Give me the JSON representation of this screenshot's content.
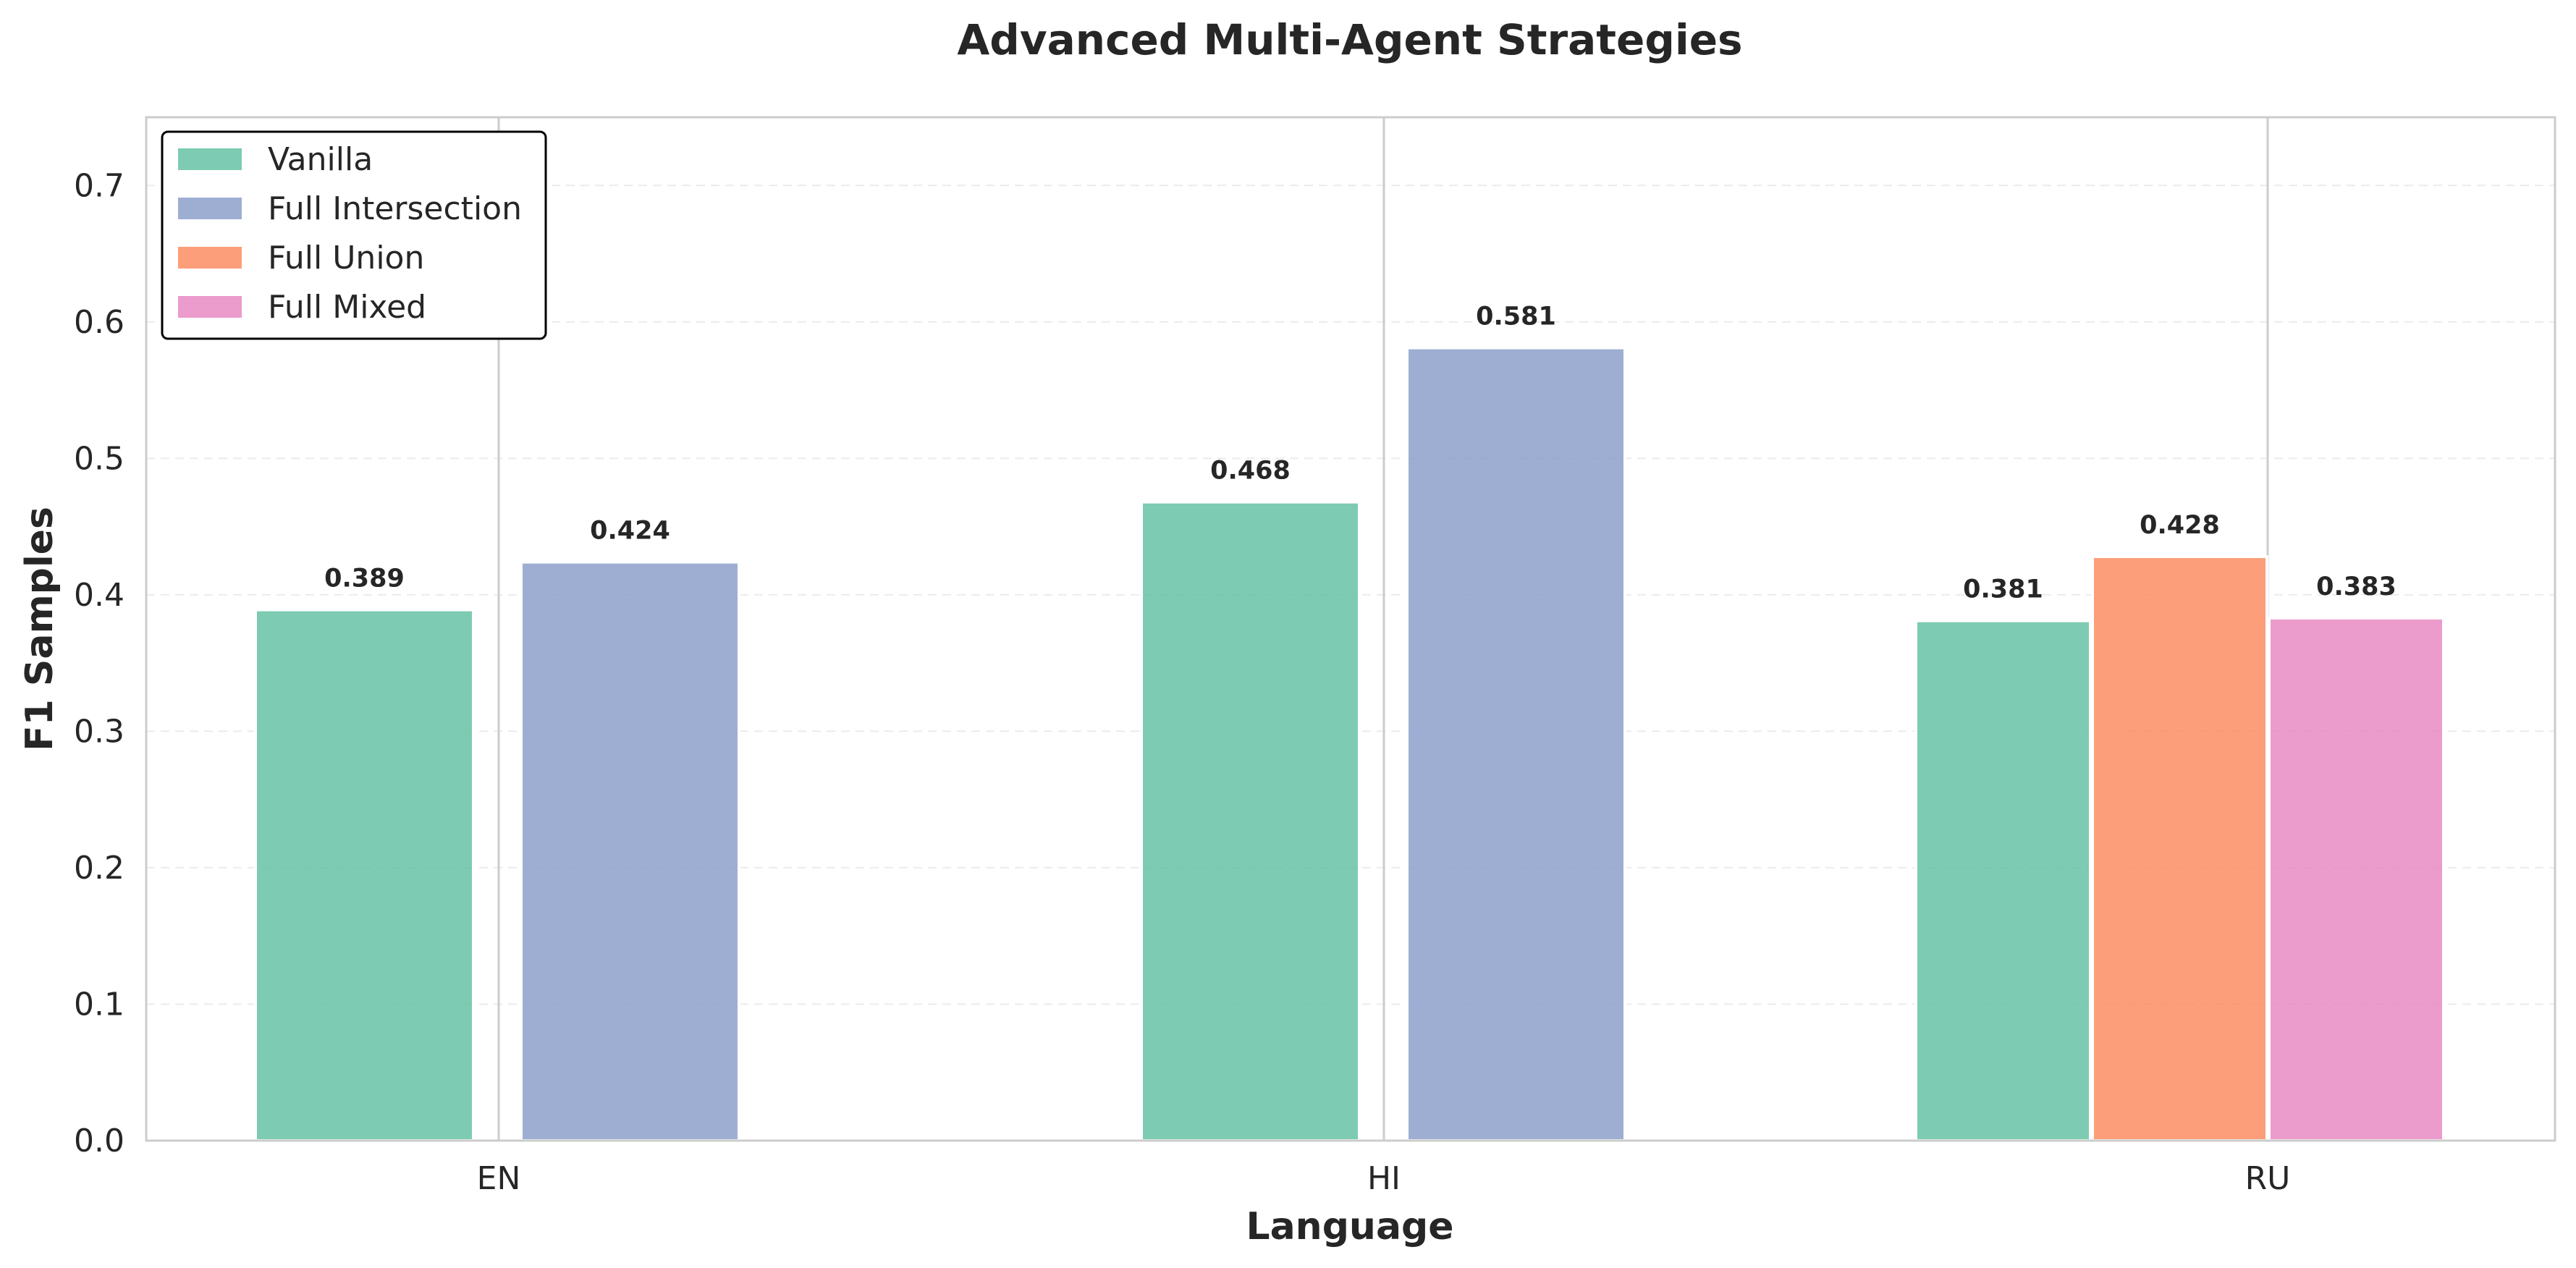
{
  "chart_data": {
    "type": "bar",
    "title": "Advanced Multi-Agent Strategies",
    "xlabel": "Language",
    "ylabel": "F1 Samples",
    "categories": [
      "EN",
      "HI",
      "RU"
    ],
    "ylim": [
      0,
      0.75
    ],
    "yticks": [
      "0.0",
      "0.1",
      "0.2",
      "0.3",
      "0.4",
      "0.5",
      "0.6",
      "0.7"
    ],
    "grid": true,
    "legend_position": "top-left",
    "series": [
      {
        "name": "Vanilla",
        "color": "#66c2a5",
        "values": [
          0.389,
          0.468,
          0.381
        ],
        "labels": [
          "0.389",
          "0.468",
          "0.381"
        ]
      },
      {
        "name": "Full Intersection",
        "color": "#8da0cb",
        "values": [
          0.424,
          0.581,
          null
        ],
        "labels": [
          "0.424",
          "0.581",
          ""
        ]
      },
      {
        "name": "Full Union",
        "color": "#fc8d62",
        "values": [
          null,
          null,
          0.428
        ],
        "labels": [
          "",
          "",
          "0.428"
        ]
      },
      {
        "name": "Full Mixed",
        "color": "#e78ac3",
        "values": [
          null,
          null,
          0.383
        ],
        "labels": [
          "",
          "",
          "0.383"
        ]
      }
    ]
  }
}
